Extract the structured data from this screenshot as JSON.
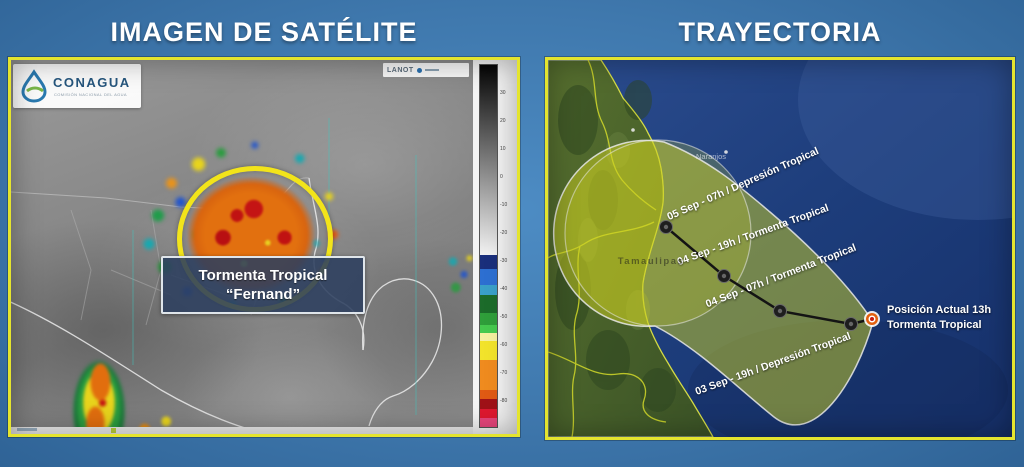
{
  "titles": {
    "left": "IMAGEN DE SATÉLITE",
    "right": "TRAYECTORIA"
  },
  "left_panel": {
    "logo": {
      "name": "CONAGUA",
      "tagline": "COMISIÓN NACIONAL DEL AGUA"
    },
    "watermark": "LANOT",
    "storm_label": {
      "line1": "Tormenta Tropical",
      "line2": "“Fernand”"
    },
    "scale": {
      "ticks": [
        "30",
        "20",
        "10",
        "0",
        "-10",
        "-20",
        "-30",
        "-40",
        "-50",
        "-60",
        "-70",
        "-80"
      ],
      "segments": [
        {
          "color": "linear-gradient(180deg,#050505,#f2f2f2)",
          "h": 190
        },
        {
          "color": "#1a2f7c",
          "h": 14
        },
        {
          "color": "#2d6fd1",
          "h": 16
        },
        {
          "color": "#3aa0c8",
          "h": 10
        },
        {
          "color": "#1c6b2a",
          "h": 18
        },
        {
          "color": "#2f9e3a",
          "h": 12
        },
        {
          "color": "#46c94e",
          "h": 8
        },
        {
          "color": "#f5f0a0",
          "h": 8
        },
        {
          "color": "#f2e32b",
          "h": 19
        },
        {
          "color": "#ef8b1f",
          "h": 30
        },
        {
          "color": "#e05a14",
          "h": 9
        },
        {
          "color": "#a01218",
          "h": 10
        },
        {
          "color": "#e01830",
          "h": 9
        },
        {
          "color": "#e8457c",
          "h": 9
        }
      ]
    }
  },
  "right_panel": {
    "track_labels": [
      {
        "text": "05 Sep - 07h / Depresión Tropical"
      },
      {
        "text": "04 Sep - 19h / Tormenta Tropical"
      },
      {
        "text": "04 Sep - 07h / Tormenta Tropical"
      },
      {
        "text": "03 Sep - 19h / Depresión Tropical"
      }
    ],
    "current_position": {
      "line1": "Posición Actual 13h",
      "line2": "Tormenta Tropical"
    },
    "place_labels": {
      "city": "Naranjos",
      "region": "Tamaulipas"
    }
  },
  "colors": {
    "background": "#3f78ad",
    "panel_border": "#e4e42e",
    "storm_ring": "#f2e41a",
    "cone_fill": "#cbd021",
    "ocean": "#1d3d7b",
    "track_line": "#141414",
    "current_marker": "#e05510"
  }
}
